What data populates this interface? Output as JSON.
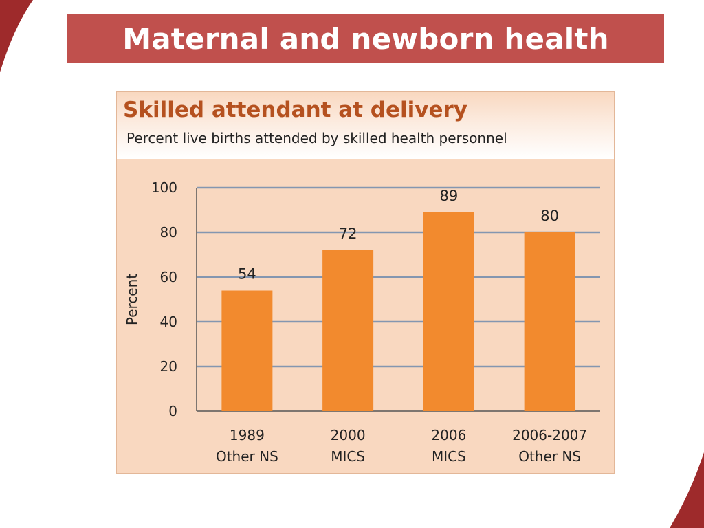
{
  "slide": {
    "title": "Maternal and newborn health",
    "accent_color": "#c0504d"
  },
  "chart_data": {
    "type": "bar",
    "title": "Skilled attendant at delivery",
    "subtitle": "Percent live births attended by skilled health personnel",
    "ylabel": "Percent",
    "xlabel": "",
    "categories": [
      [
        "1989",
        "Other NS"
      ],
      [
        "2000",
        "MICS"
      ],
      [
        "2006",
        "MICS"
      ],
      [
        "2006-2007",
        "Other NS"
      ]
    ],
    "values": [
      54,
      72,
      89,
      80
    ],
    "data_labels": [
      "54",
      "72",
      "89",
      "80"
    ],
    "ylim": [
      0,
      100
    ],
    "yticks": [
      0,
      20,
      40,
      60,
      80,
      100
    ],
    "grid": true,
    "legend": "none",
    "bar_color": "#f28a2e",
    "title_color": "#b5511f",
    "panel_color": "#f9d8c0",
    "grid_color": "#8496b0"
  }
}
